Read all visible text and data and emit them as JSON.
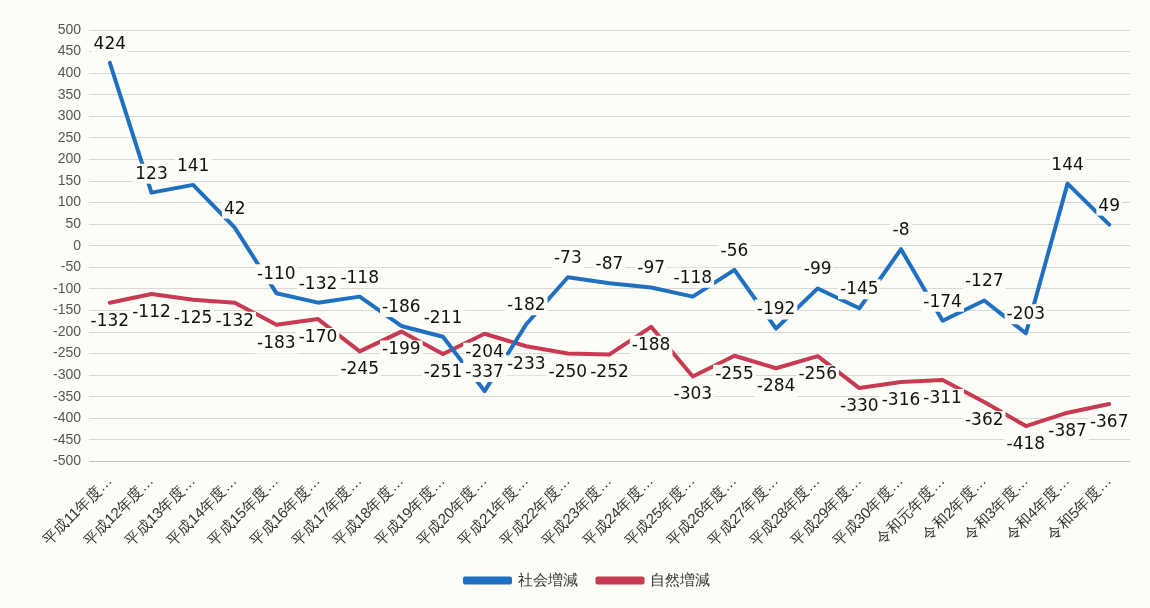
{
  "chart_data": {
    "type": "line",
    "categories": [
      "平成11年度…",
      "平成12年度…",
      "平成13年度…",
      "平成14年度…",
      "平成15年度…",
      "平成16年度…",
      "平成17年度…",
      "平成18年度…",
      "平成19年度…",
      "平成20年度…",
      "平成21年度…",
      "平成22年度…",
      "平成23年度…",
      "平成24年度…",
      "平成25年度…",
      "平成26年度…",
      "平成27年度…",
      "平成28年度…",
      "平成29年度…",
      "平成30年度…",
      "令和元年度…",
      "令和2年度…",
      "令和3年度…",
      "令和4年度…",
      "令和5年度…"
    ],
    "series": [
      {
        "name": "社会増減",
        "color": "#1f70c1",
        "values": [
          424,
          123,
          141,
          42,
          -110,
          -132,
          -118,
          -186,
          -211,
          -337,
          -182,
          -73,
          -87,
          -97,
          -118,
          -56,
          -192,
          -99,
          -145,
          -8,
          -174,
          -127,
          -203,
          144,
          49
        ]
      },
      {
        "name": "自然増減",
        "color": "#c83a52",
        "values": [
          -132,
          -112,
          -125,
          -132,
          -183,
          -170,
          -245,
          -199,
          -251,
          -204,
          -233,
          -250,
          -252,
          -188,
          -303,
          -255,
          -284,
          -256,
          -330,
          -316,
          -311,
          -362,
          -418,
          -387,
          -367
        ]
      }
    ],
    "ylim": [
      -500,
      500
    ],
    "yticks": [
      -500,
      -450,
      -400,
      -350,
      -300,
      -250,
      -200,
      -150,
      -100,
      -50,
      0,
      50,
      100,
      150,
      200,
      250,
      300,
      350,
      400,
      450,
      500
    ],
    "grid": "y",
    "legend": "bottom",
    "data_labels": true,
    "marker": "none",
    "line_style": "solid"
  }
}
